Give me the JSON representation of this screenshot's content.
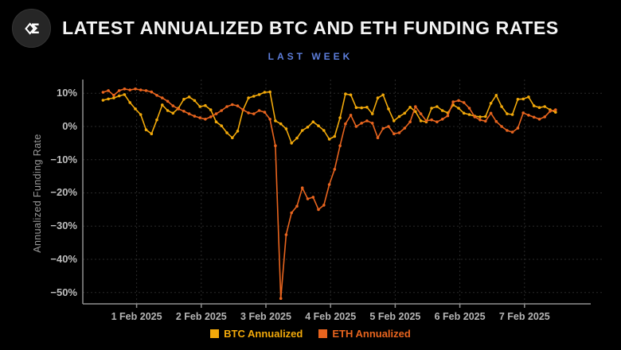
{
  "header": {
    "title": "LATEST ANNUALIZED BTC AND ETH FUNDING RATES",
    "subtitle": "LAST WEEK"
  },
  "logo": {
    "glyph": "Σ"
  },
  "colors": {
    "background": "#000000",
    "title_text": "#F4F4F4",
    "subtitle_text": "#5D7EDB",
    "axis_line": "#8F8F8F",
    "gridline": "#2A2A2A",
    "tick_text": "#BDBDBD",
    "btc": "#F2A90A",
    "eth": "#E8641E"
  },
  "chart_data": {
    "type": "line",
    "title": "LATEST ANNUALIZED BTC AND ETH FUNDING RATES",
    "subtitle": "LAST WEEK",
    "xlabel": "",
    "ylabel": "Annualized Funding Rate",
    "ylim": [
      -55,
      13
    ],
    "grid": true,
    "legend_position": "bottom",
    "marker": "dot",
    "y_ticks": [
      10,
      0,
      -10,
      -20,
      -30,
      -40,
      -50
    ],
    "y_tick_labels": [
      "10%",
      "0%",
      "−10%",
      "−20%",
      "−30%",
      "−40%",
      "−50%"
    ],
    "x_tick_days": [
      0,
      1,
      2,
      3,
      4,
      5,
      6
    ],
    "x_tick_labels": [
      "1 Feb 2025",
      "2 Feb 2025",
      "3 Feb 2025",
      "4 Feb 2025",
      "5 Feb 2025",
      "6 Feb 2025",
      "7 Feb 2025"
    ],
    "x_unit": "days since 1 Feb 2025 00:00, 2-hour sampling",
    "x_start_day": -0.52,
    "x_step_days": 0.083333,
    "series": [
      {
        "name": "BTC Annualized",
        "color": "#F2A90A",
        "values": [
          7.9,
          8.3,
          8.6,
          9.2,
          9.6,
          7.2,
          5.3,
          3.6,
          -1.0,
          -2.2,
          2.0,
          6.5,
          4.8,
          4.0,
          5.5,
          8.2,
          8.9,
          7.8,
          6.0,
          6.3,
          5.0,
          1.4,
          0.2,
          -1.9,
          -3.4,
          -1.4,
          5.0,
          8.6,
          9.1,
          9.6,
          10.3,
          10.4,
          1.7,
          0.8,
          -0.7,
          -5.0,
          -3.5,
          -1.2,
          -0.2,
          1.4,
          0.2,
          -1.2,
          -3.8,
          -3.0,
          2.6,
          9.8,
          9.5,
          5.7,
          5.6,
          5.8,
          3.8,
          8.6,
          9.5,
          5.3,
          1.7,
          3.0,
          4.0,
          5.8,
          4.5,
          1.7,
          1.4,
          5.5,
          6.0,
          4.8,
          4.1,
          6.5,
          5.5,
          4.0,
          3.6,
          3.1,
          2.9,
          3.0,
          7.0,
          9.4,
          6.0,
          3.8,
          3.6,
          8.2,
          8.3,
          8.9,
          6.2,
          5.7,
          6.0,
          5.0,
          4.3
        ]
      },
      {
        "name": "ETH Annualized",
        "color": "#E8641E",
        "values": [
          10.3,
          10.8,
          9.4,
          10.8,
          11.3,
          11.0,
          11.3,
          11.0,
          10.8,
          10.4,
          9.4,
          8.6,
          7.6,
          6.2,
          5.3,
          4.6,
          3.8,
          3.1,
          2.6,
          2.2,
          2.9,
          3.8,
          4.8,
          6.0,
          6.6,
          6.2,
          5.0,
          4.1,
          3.8,
          4.8,
          4.3,
          2.2,
          -5.8,
          -51.8,
          -32.6,
          -26.0,
          -24.0,
          -18.5,
          -21.8,
          -21.3,
          -25.0,
          -23.7,
          -17.5,
          -12.9,
          -5.8,
          0.8,
          3.4,
          0.0,
          1.0,
          1.7,
          1.0,
          -3.4,
          -0.6,
          0.0,
          -2.2,
          -1.9,
          -0.5,
          1.4,
          6.0,
          3.8,
          1.7,
          2.0,
          1.4,
          2.2,
          3.2,
          7.4,
          7.8,
          7.2,
          5.5,
          2.9,
          2.0,
          1.6,
          4.0,
          1.5,
          0.0,
          -1.2,
          -1.7,
          -0.5,
          4.1,
          3.4,
          2.8,
          2.2,
          2.9,
          4.6,
          5.0
        ]
      }
    ]
  },
  "legend": {
    "btc_label": "BTC Annualized",
    "eth_label": "ETH Annualized"
  }
}
